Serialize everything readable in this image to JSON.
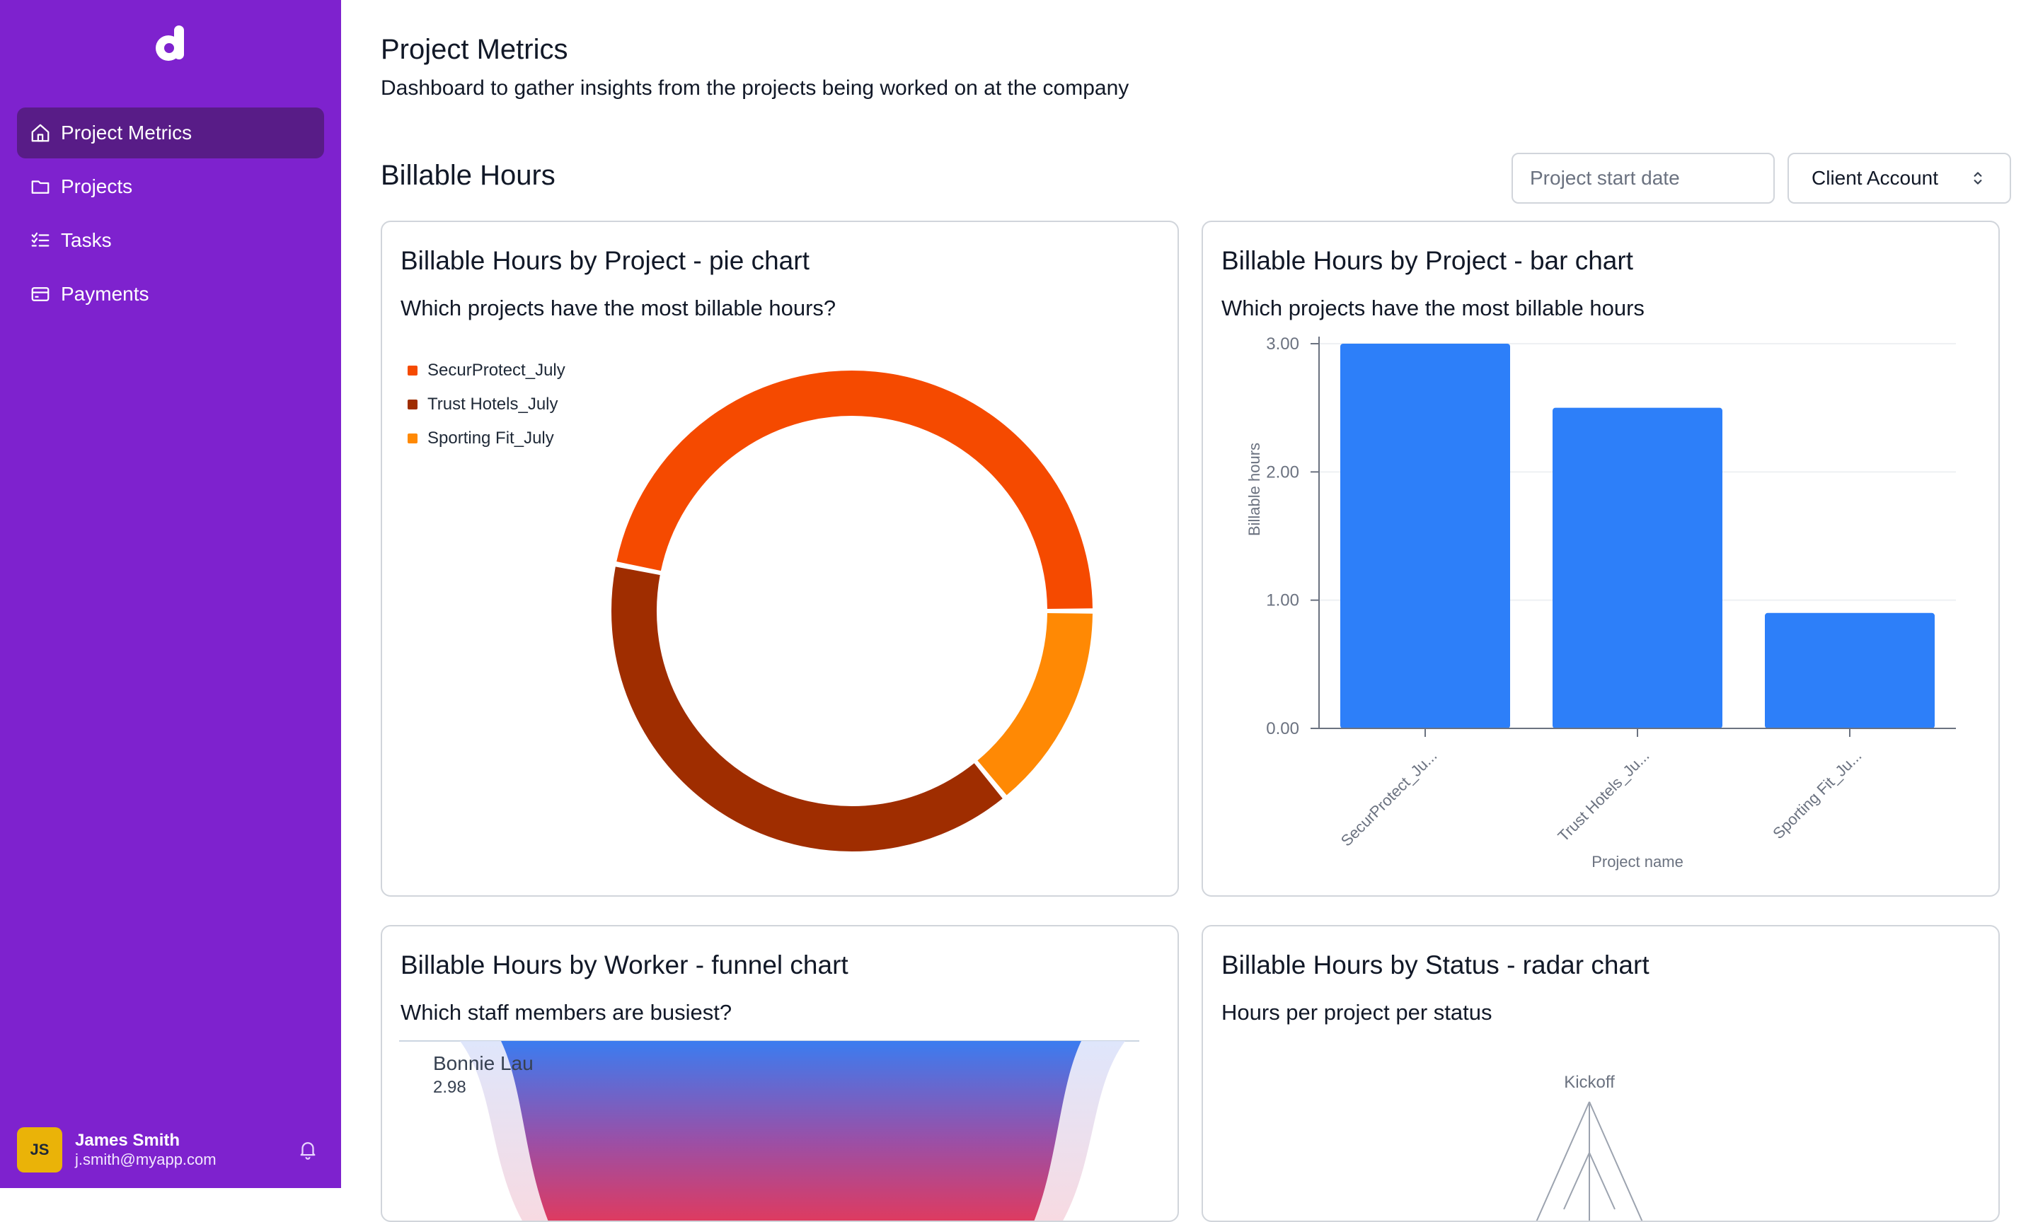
{
  "app": {
    "logo_icon": "d-logo-icon"
  },
  "sidebar": {
    "items": [
      {
        "label": "Project Metrics",
        "icon": "home-icon",
        "active": true
      },
      {
        "label": "Projects",
        "icon": "folder-icon",
        "active": false
      },
      {
        "label": "Tasks",
        "icon": "checklist-icon",
        "active": false
      },
      {
        "label": "Payments",
        "icon": "credit-card-icon",
        "active": false
      }
    ],
    "user": {
      "initials": "JS",
      "name": "James Smith",
      "email": "j.smith@myapp.com",
      "bell_icon": "bell-icon"
    }
  },
  "header": {
    "title": "Project Metrics",
    "subtitle": "Dashboard to gather insights from the projects being worked on at the company"
  },
  "section": {
    "title": "Billable Hours",
    "date_placeholder": "Project start date",
    "client_select": "Client Account"
  },
  "colors": {
    "sidebar": "#7e22ce",
    "sidebar_active": "#581c87",
    "bar": "#2d7ff9",
    "pie": [
      "#f54a00",
      "#9f2d00",
      "#ff8904"
    ]
  },
  "cards": {
    "pie": {
      "title": "Billable Hours by Project - pie chart",
      "subtitle": "Which projects have the most billable hours?"
    },
    "bar": {
      "title": "Billable Hours by Project - bar chart",
      "subtitle": "Which projects have the most billable hours"
    },
    "funnel": {
      "title": "Billable Hours by Worker - funnel chart",
      "subtitle": "Which staff members are busiest?"
    },
    "radar": {
      "title": "Billable Hours by Status - radar chart",
      "subtitle": "Hours per project per status"
    }
  },
  "chart_data": [
    {
      "type": "pie",
      "donut": true,
      "series": [
        {
          "name": "SecurProtect_July",
          "value": 3.0
        },
        {
          "name": "Trust Hotels_July",
          "value": 2.5
        },
        {
          "name": "Sporting Fit_July",
          "value": 0.9
        }
      ],
      "legend": "top-left"
    },
    {
      "type": "bar",
      "categories": [
        "SecurProtect_Ju...",
        "Trust Hotels_Ju...",
        "Sporting Fit_Ju..."
      ],
      "values": [
        3.0,
        2.5,
        0.9
      ],
      "xlabel": "Project name",
      "ylabel": "Billable hours",
      "ylim": [
        0,
        3
      ],
      "yticks": [
        "0.00",
        "1.00",
        "2.00",
        "3.00"
      ],
      "grid": true
    },
    {
      "type": "funnel",
      "labels": [
        {
          "name": "Bonnie Lau",
          "value": "2.98"
        }
      ]
    },
    {
      "type": "radar",
      "axes": [
        "Kickoff"
      ]
    }
  ]
}
